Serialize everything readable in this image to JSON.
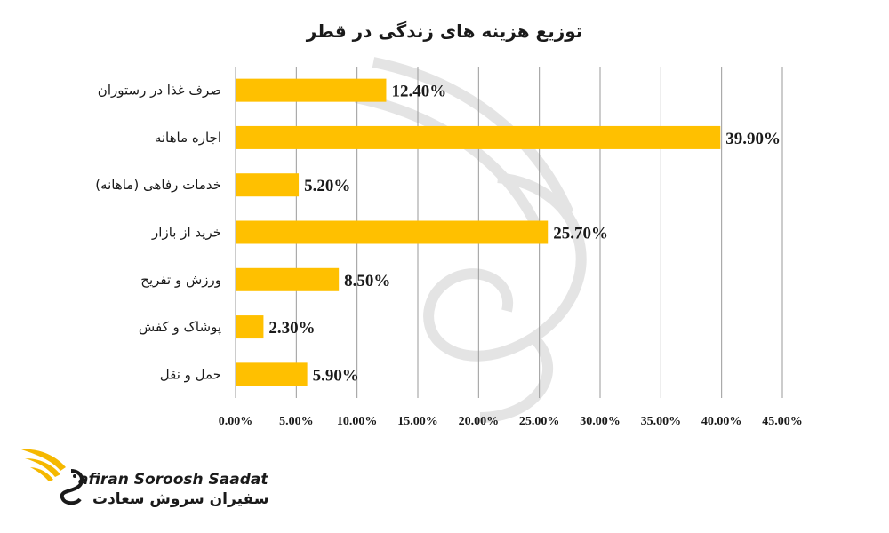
{
  "colors": {
    "bar": "#FFC000",
    "text": "#1a1a1a",
    "grid": "#9a9a9a",
    "brand_accent": "#F5B800"
  },
  "brand": {
    "name_en": "afiran Soroosh Saadat",
    "name_fa": "سفیران سروش سعادت",
    "logo_icon": "winged-s-logo-icon"
  },
  "chart_data": {
    "type": "bar",
    "orientation": "horizontal",
    "title": "توزیع هزینه های زندگی در قطر",
    "categories": [
      "صرف غذا در رستوران",
      "اجاره ماهانه",
      "خدمات رفاهی (ماهانه)",
      "خرید از بازار",
      "ورزش و تفریح",
      "پوشاک و کفش",
      "حمل و نقل"
    ],
    "values": [
      12.4,
      39.9,
      5.2,
      25.7,
      8.5,
      2.3,
      5.9
    ],
    "value_labels": [
      "12.40%",
      "39.90%",
      "5.20%",
      "25.70%",
      "8.50%",
      "2.30%",
      "5.90%"
    ],
    "x_ticks": [
      "0.00%",
      "5.00%",
      "10.00%",
      "15.00%",
      "20.00%",
      "25.00%",
      "30.00%",
      "35.00%",
      "40.00%",
      "45.00%"
    ],
    "xlim": [
      0,
      45
    ],
    "xlabel": "",
    "ylabel": "",
    "grid": true,
    "legend": "none"
  }
}
